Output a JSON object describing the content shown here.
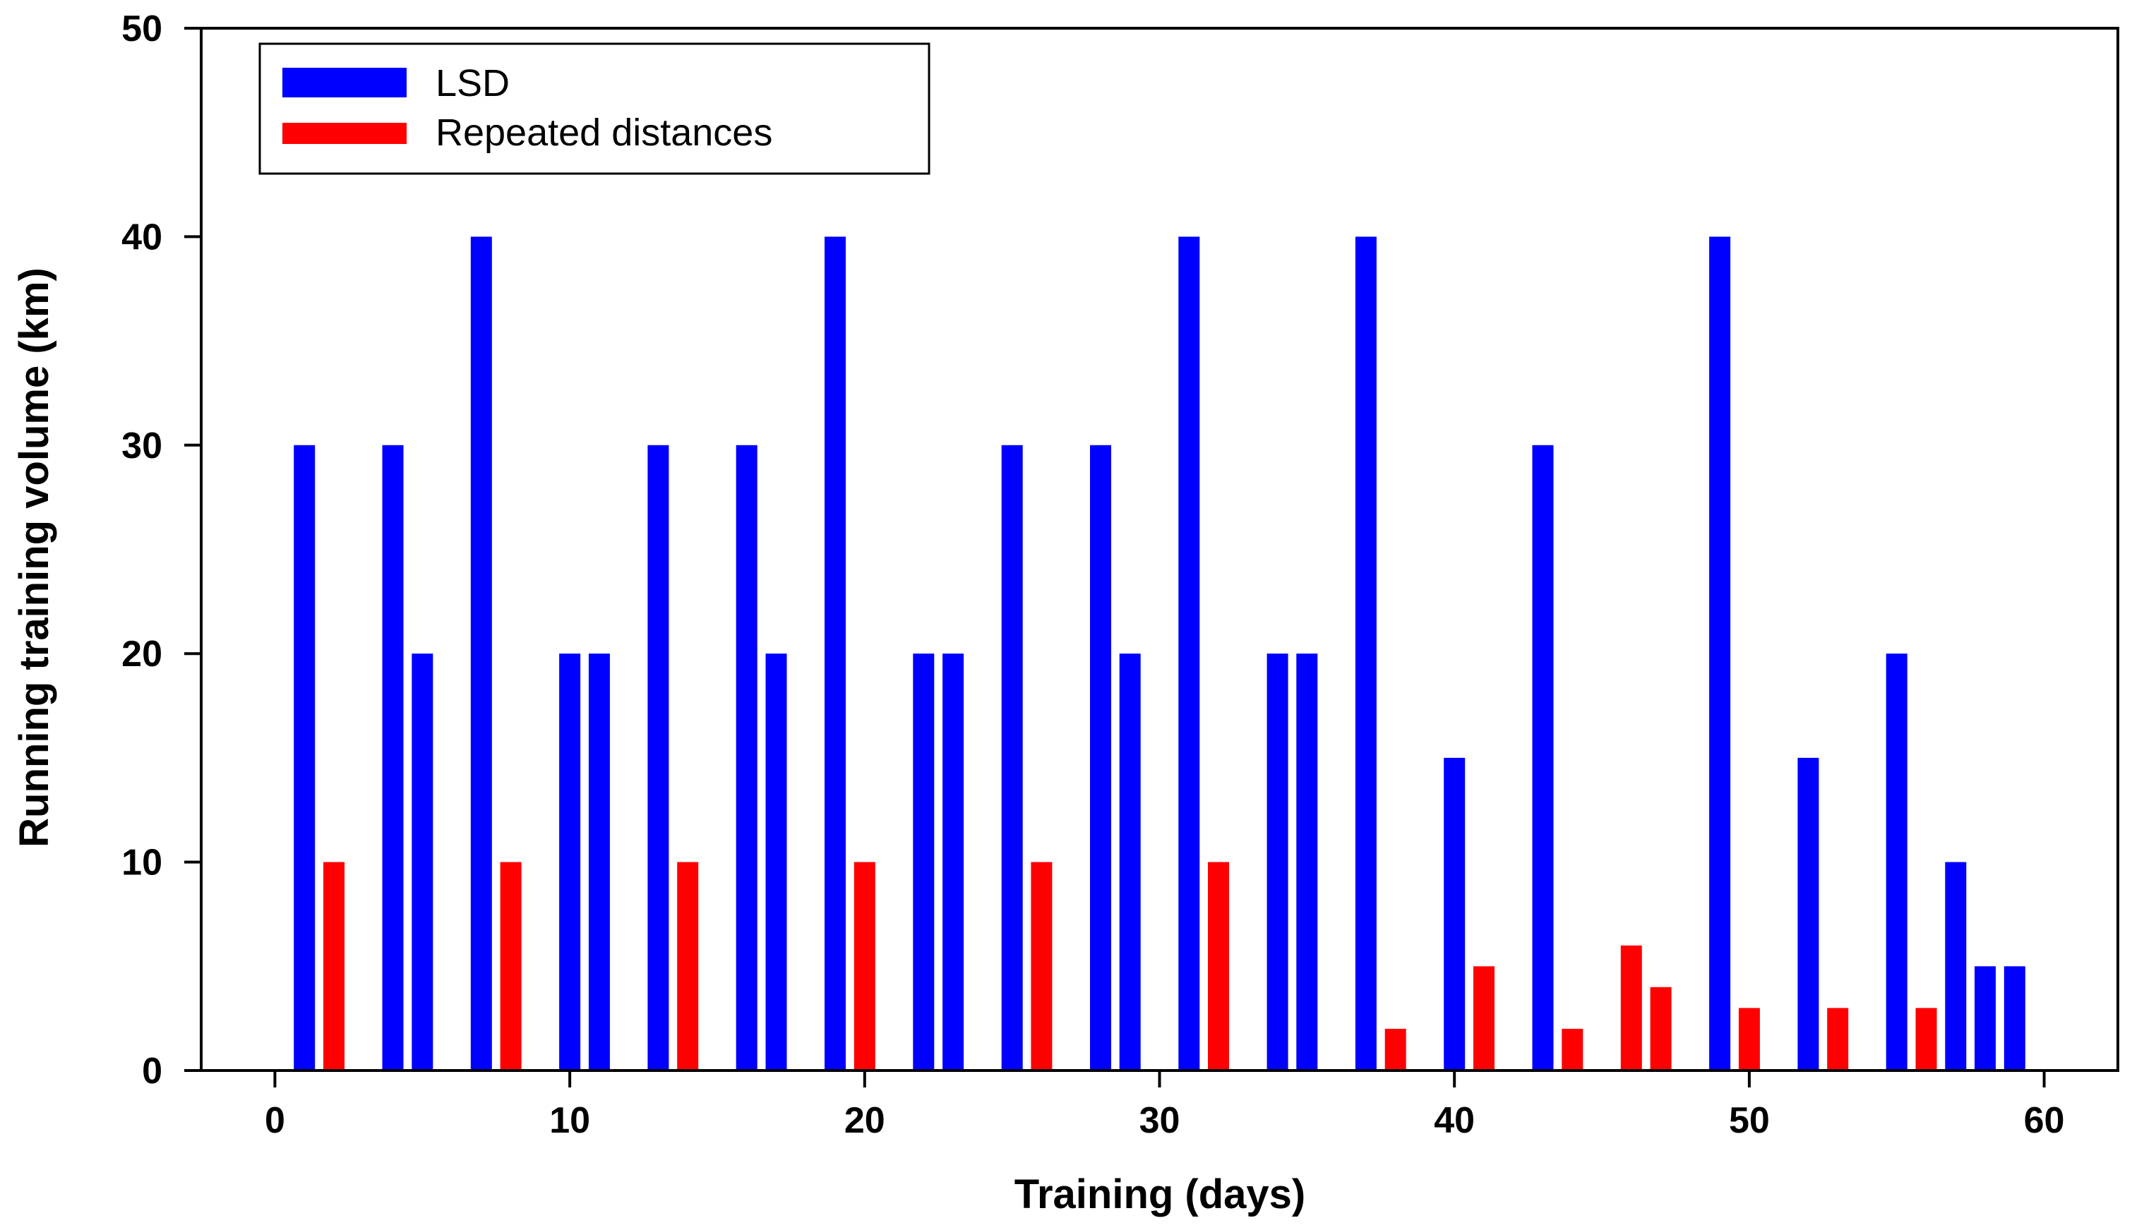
{
  "chart_data": {
    "type": "bar",
    "title": "",
    "xlabel": "Training (days)",
    "ylabel": "Running training volume (km)",
    "xlim": [
      -2.5,
      62.5
    ],
    "ylim": [
      0,
      50
    ],
    "x_ticks": [
      0,
      10,
      20,
      30,
      40,
      50,
      60
    ],
    "y_ticks": [
      0,
      10,
      20,
      30,
      40,
      50
    ],
    "legend_position": "top-left",
    "series": [
      {
        "name": "LSD",
        "color": "#0000ff",
        "points": [
          {
            "day": 1,
            "value": 30
          },
          {
            "day": 4,
            "value": 30
          },
          {
            "day": 5,
            "value": 20
          },
          {
            "day": 7,
            "value": 40
          },
          {
            "day": 10,
            "value": 20
          },
          {
            "day": 11,
            "value": 20
          },
          {
            "day": 13,
            "value": 30
          },
          {
            "day": 16,
            "value": 30
          },
          {
            "day": 17,
            "value": 20
          },
          {
            "day": 19,
            "value": 40
          },
          {
            "day": 22,
            "value": 20
          },
          {
            "day": 23,
            "value": 20
          },
          {
            "day": 25,
            "value": 30
          },
          {
            "day": 28,
            "value": 30
          },
          {
            "day": 29,
            "value": 20
          },
          {
            "day": 31,
            "value": 40
          },
          {
            "day": 34,
            "value": 20
          },
          {
            "day": 35,
            "value": 20
          },
          {
            "day": 37,
            "value": 40
          },
          {
            "day": 40,
            "value": 15
          },
          {
            "day": 43,
            "value": 30
          },
          {
            "day": 49,
            "value": 40
          },
          {
            "day": 52,
            "value": 15
          },
          {
            "day": 55,
            "value": 20
          },
          {
            "day": 57,
            "value": 10
          },
          {
            "day": 58,
            "value": 5
          },
          {
            "day": 59,
            "value": 5
          }
        ]
      },
      {
        "name": "Repeated distances",
        "color": "#ff0000",
        "points": [
          {
            "day": 2,
            "value": 10
          },
          {
            "day": 8,
            "value": 10
          },
          {
            "day": 14,
            "value": 10
          },
          {
            "day": 20,
            "value": 10
          },
          {
            "day": 26,
            "value": 10
          },
          {
            "day": 32,
            "value": 10
          },
          {
            "day": 38,
            "value": 2
          },
          {
            "day": 41,
            "value": 5
          },
          {
            "day": 44,
            "value": 2
          },
          {
            "day": 46,
            "value": 6
          },
          {
            "day": 47,
            "value": 4
          },
          {
            "day": 50,
            "value": 3
          },
          {
            "day": 53,
            "value": 3
          },
          {
            "day": 56,
            "value": 3
          }
        ]
      }
    ]
  }
}
